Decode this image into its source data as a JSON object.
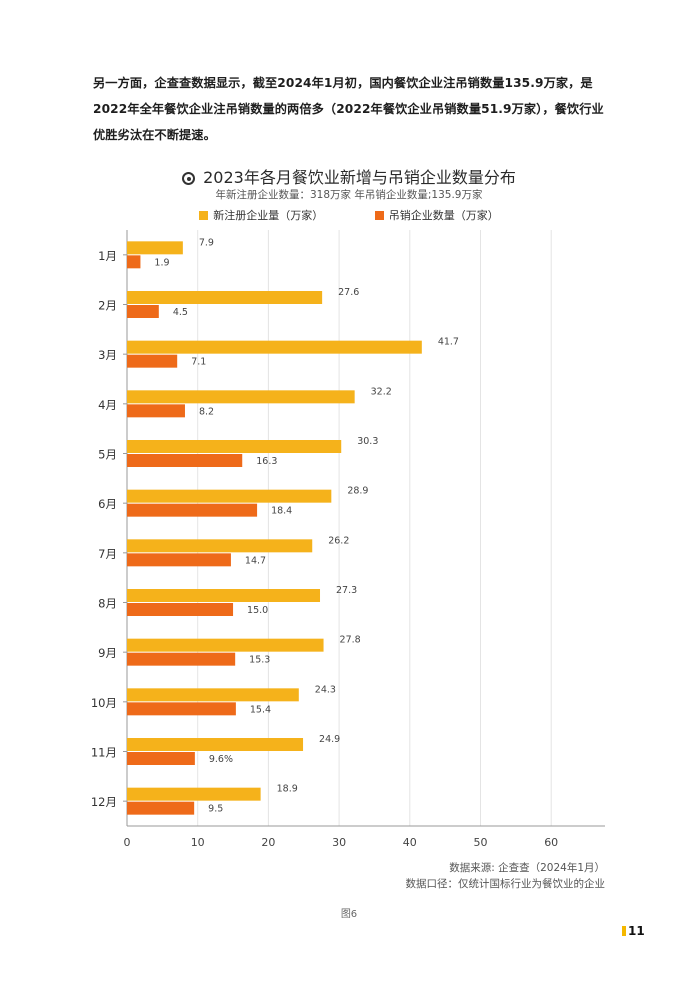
{
  "intro_text": "另一方面，企查查数据显示，截至2024年1月初，国内餐饮企业注吊销数量135.9万家，是2022年全年餐饮企业注吊销数量的两倍多（2022年餐饮企业吊销数量51.9万家），餐饮行业优胜劣汰在不断提速。",
  "colors": {
    "new": "#f5b21b",
    "revoked": "#ee6a19",
    "grid": "#e4e4e4",
    "axis": "#999999"
  },
  "chart_data": {
    "type": "bar",
    "orientation": "horizontal",
    "title": "2023年各月餐饮业新增与吊销企业数量分布",
    "subtitle": "年新注册企业数量：318万家   年吊销企业数量;135.9万家",
    "categories": [
      "1月",
      "2月",
      "3月",
      "4月",
      "5月",
      "6月",
      "7月",
      "8月",
      "9月",
      "10月",
      "11月",
      "12月"
    ],
    "series": [
      {
        "name": "新注册企业量（万家）",
        "values": [
          7.9,
          27.6,
          41.7,
          32.2,
          30.3,
          28.9,
          26.2,
          27.3,
          27.8,
          24.3,
          24.9,
          18.9
        ],
        "labels": [
          "7.9",
          "27.6",
          "41.7",
          "32.2",
          "30.3",
          "28.9",
          "26.2",
          "27.3",
          "27.8",
          "24.3",
          "24.9",
          "18.9"
        ]
      },
      {
        "name": "吊销企业数量（万家）",
        "values": [
          1.9,
          4.5,
          7.1,
          8.2,
          16.3,
          18.4,
          14.7,
          15.0,
          15.3,
          15.4,
          9.6,
          9.5
        ],
        "labels": [
          "1.9",
          "4.5",
          "7.1",
          "8.2",
          "16.3",
          "18.4",
          "14.7",
          "15.0",
          "15.3",
          "15.4",
          "9.6%",
          "9.5"
        ]
      }
    ],
    "xlim": [
      0,
      67
    ],
    "xticks": [
      "0",
      "10",
      "20",
      "30",
      "40",
      "50",
      "60"
    ],
    "grid": true,
    "legend_position": "top"
  },
  "source_line1": "数据来源: 企查查（2024年1月）",
  "source_line2": "数据口径：仅统计国标行业为餐饮业的企业",
  "caption": "图6",
  "page_number": "11"
}
